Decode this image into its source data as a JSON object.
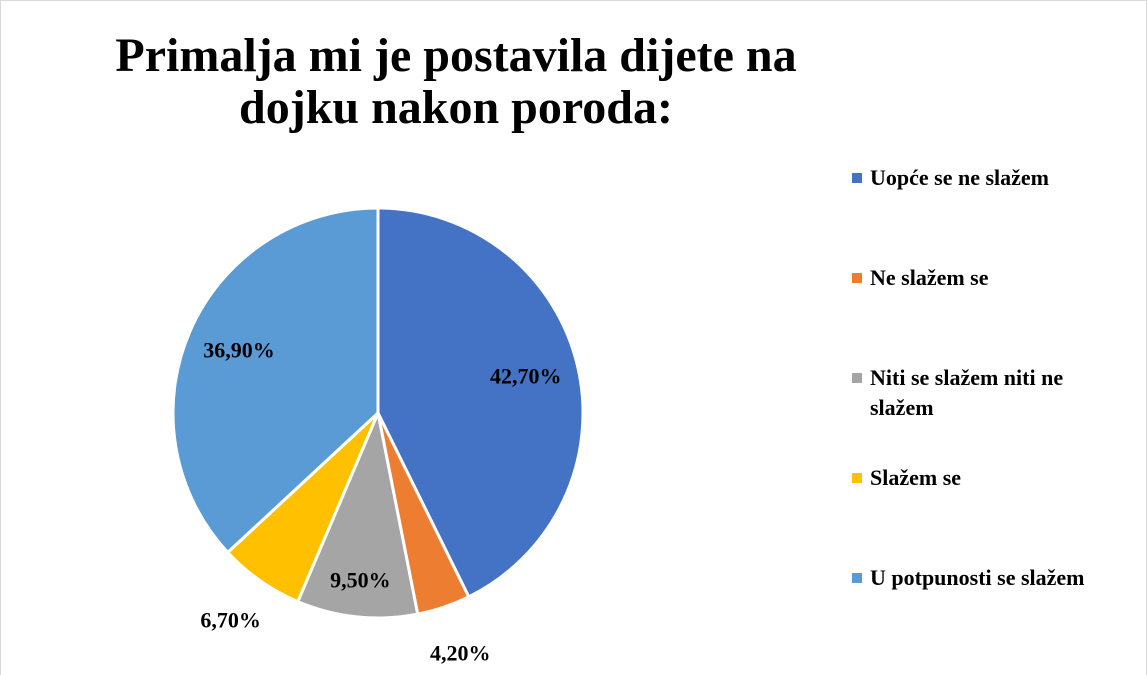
{
  "chart_data": {
    "type": "pie",
    "title": "Primalja mi je postavila dijete na dojku nakon poroda:",
    "categories": [
      "Uopće se ne slažem",
      "Ne slažem se",
      "Niti se slažem niti ne slažem",
      "Slažem se",
      "U potpunosti se slažem"
    ],
    "values": [
      42.7,
      4.2,
      9.5,
      6.7,
      36.9
    ],
    "value_labels": [
      "42,70%",
      "4,20%",
      "9,50%",
      "6,70%",
      "36,90%"
    ],
    "colors": [
      "#4472c4",
      "#ed7d31",
      "#a5a5a5",
      "#ffc000",
      "#5b9bd5"
    ],
    "legend": "right"
  }
}
